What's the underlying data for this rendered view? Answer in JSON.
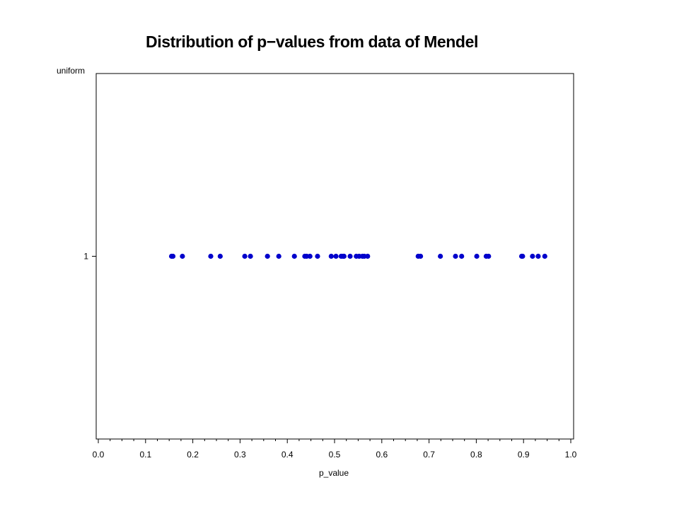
{
  "chart_data": {
    "type": "scatter",
    "title": "Distribution of p−values from data of Mendel",
    "xlabel": "p_value",
    "ylabel": "uniform",
    "xlim": [
      0.0,
      1.0
    ],
    "ylim": [
      0,
      2
    ],
    "x_ticks": [
      "0.0",
      "0.1",
      "0.2",
      "0.3",
      "0.4",
      "0.5",
      "0.6",
      "0.7",
      "0.8",
      "0.9",
      "1.0"
    ],
    "y_ticks": [
      "1"
    ],
    "grid": false,
    "legend": "none",
    "marker_color": "#0000cc",
    "series": [
      {
        "x": [
          0.155,
          0.158,
          0.178,
          0.238,
          0.258,
          0.31,
          0.322,
          0.358,
          0.382,
          0.415,
          0.437,
          0.441,
          0.448,
          0.464,
          0.493,
          0.503,
          0.514,
          0.518,
          0.52,
          0.533,
          0.546,
          0.552,
          0.559,
          0.563,
          0.57,
          0.677,
          0.682,
          0.724,
          0.756,
          0.769,
          0.801,
          0.821,
          0.826,
          0.896,
          0.898,
          0.919,
          0.931,
          0.945
        ],
        "y": [
          1,
          1,
          1,
          1,
          1,
          1,
          1,
          1,
          1,
          1,
          1,
          1,
          1,
          1,
          1,
          1,
          1,
          1,
          1,
          1,
          1,
          1,
          1,
          1,
          1,
          1,
          1,
          1,
          1,
          1,
          1,
          1,
          1,
          1,
          1,
          1,
          1,
          1
        ]
      }
    ]
  }
}
